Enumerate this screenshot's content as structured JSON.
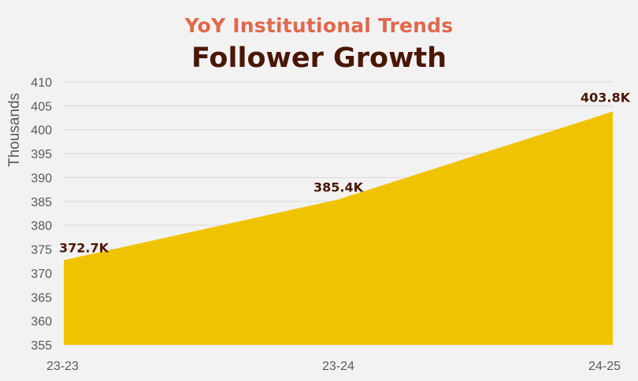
{
  "chart_data": {
    "type": "area",
    "subtitle": "YoY Institutional Trends",
    "title": "Follower Growth",
    "ylabel": "Thousands",
    "xlabel": "",
    "categories": [
      "23-23",
      "23-24",
      "24-25"
    ],
    "values": [
      372.7,
      385.4,
      403.8
    ],
    "data_labels": [
      "372.7K",
      "385.4K",
      "403.8K"
    ],
    "ylim": [
      355,
      410
    ],
    "yticks": [
      355,
      360,
      365,
      370,
      375,
      380,
      385,
      390,
      395,
      400,
      405,
      410
    ],
    "grid": true,
    "legend": "none",
    "colors": {
      "fill": "#f0c300",
      "subtitle": "#e0684b",
      "title": "#4a1704",
      "data_label": "#4a1704",
      "tick_label": "#595959",
      "grid": "#d9d9d9",
      "background": "#f2f2f2"
    }
  }
}
